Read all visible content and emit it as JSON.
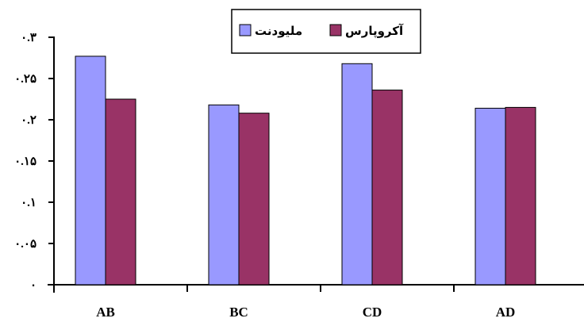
{
  "chart_data": {
    "type": "bar",
    "categories": [
      "AB",
      "BC",
      "CD",
      "AD"
    ],
    "series": [
      {
        "name": "ملیودنت",
        "values": [
          0.277,
          0.218,
          0.268,
          0.214
        ],
        "color": "#9999ff"
      },
      {
        "name": "آکروپارس",
        "values": [
          0.225,
          0.208,
          0.236,
          0.215
        ],
        "color": "#993366"
      }
    ],
    "ylim": [
      0,
      0.3
    ],
    "yticks": [
      0,
      0.05,
      0.1,
      0.15,
      0.2,
      0.25,
      0.3
    ],
    "ytick_labels": [
      "۰",
      "۰.۰۵",
      "۰.۱",
      "۰.۱۵",
      "۰.۲",
      "۰.۲۵",
      "۰.۳"
    ],
    "grid": false,
    "legend_position": "top-right"
  }
}
